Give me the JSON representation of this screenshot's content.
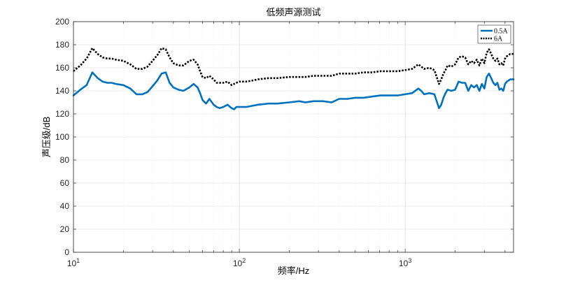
{
  "chart_data": {
    "type": "line",
    "title": "低频声源测试",
    "xlabel": "频率/Hz",
    "ylabel": "声压级/dB",
    "xscale": "log",
    "xlim": [
      10,
      4500
    ],
    "ylim": [
      0,
      200
    ],
    "yticks": [
      0,
      20,
      40,
      60,
      80,
      100,
      120,
      140,
      160,
      180,
      200
    ],
    "xticks": [
      {
        "value": 10,
        "base": "10",
        "exp": "1"
      },
      {
        "value": 100,
        "base": "10",
        "exp": "2"
      },
      {
        "value": 1000,
        "base": "10",
        "exp": "3"
      }
    ],
    "grid": true,
    "legend_position": "top-right",
    "series": [
      {
        "name": "0.5A",
        "color": "#0072BD",
        "style": "solid",
        "x": [
          10,
          11,
          12,
          13,
          14,
          15,
          16,
          17,
          18,
          20,
          22,
          24,
          26,
          28,
          30,
          32,
          34,
          36,
          38,
          40,
          43,
          46,
          50,
          53,
          56,
          58,
          60,
          63,
          66,
          70,
          73,
          76,
          80,
          85,
          88,
          90,
          93,
          96,
          100,
          110,
          120,
          130,
          150,
          170,
          200,
          230,
          250,
          280,
          320,
          360,
          400,
          450,
          500,
          560,
          630,
          710,
          800,
          900,
          1000,
          1100,
          1200,
          1250,
          1300,
          1400,
          1500,
          1600,
          1650,
          1700,
          1750,
          1800,
          1900,
          2000,
          2100,
          2200,
          2300,
          2400,
          2500,
          2600,
          2700,
          2800,
          2900,
          3000,
          3100,
          3200,
          3300,
          3400,
          3500,
          3600,
          3700,
          3800,
          3900,
          4000,
          4100,
          4200,
          4300,
          4400,
          4500
        ],
        "y": [
          136,
          141,
          145,
          156,
          151,
          148,
          147,
          147,
          146,
          145,
          142,
          137,
          137,
          139,
          144,
          149,
          155,
          156,
          147,
          143,
          141,
          140,
          143,
          146,
          143,
          138,
          132,
          129,
          133,
          128,
          126,
          125,
          126,
          128,
          126,
          125,
          124,
          126,
          126,
          126,
          127,
          128,
          129,
          129,
          130,
          131,
          130,
          131,
          131,
          130,
          133,
          133,
          134,
          134,
          135,
          136,
          136,
          136,
          137,
          138,
          142,
          140,
          137,
          138,
          137,
          125,
          128,
          134,
          138,
          141,
          140,
          141,
          148,
          147,
          147,
          140,
          145,
          143,
          145,
          140,
          146,
          142,
          152,
          155,
          151,
          147,
          145,
          147,
          141,
          142,
          140,
          146,
          148,
          149,
          150,
          150,
          150
        ]
      },
      {
        "name": "6A",
        "color": "#000000",
        "style": "dotted",
        "x": [
          10,
          11,
          12,
          13,
          14,
          15,
          16,
          17,
          18,
          20,
          22,
          24,
          26,
          28,
          30,
          32,
          34,
          36,
          38,
          40,
          43,
          46,
          50,
          53,
          56,
          58,
          60,
          63,
          66,
          70,
          73,
          76,
          80,
          85,
          88,
          90,
          93,
          96,
          100,
          110,
          120,
          130,
          150,
          170,
          200,
          230,
          250,
          280,
          320,
          360,
          400,
          450,
          500,
          560,
          630,
          710,
          800,
          900,
          1000,
          1100,
          1200,
          1250,
          1300,
          1400,
          1500,
          1600,
          1650,
          1700,
          1750,
          1800,
          1900,
          2000,
          2100,
          2200,
          2300,
          2400,
          2500,
          2600,
          2700,
          2800,
          2900,
          3000,
          3100,
          3200,
          3300,
          3400,
          3500,
          3600,
          3700,
          3800,
          3900,
          4000,
          4100,
          4200,
          4300,
          4400,
          4500
        ],
        "y": [
          157,
          162,
          168,
          177,
          172,
          169,
          168,
          168,
          167,
          166,
          163,
          159,
          159,
          161,
          166,
          171,
          177,
          176,
          169,
          164,
          162,
          162,
          166,
          167,
          163,
          157,
          152,
          151,
          153,
          150,
          147,
          147,
          147,
          148,
          146,
          145,
          146,
          147,
          148,
          148,
          149,
          150,
          151,
          151,
          152,
          152,
          152,
          153,
          153,
          153,
          155,
          155,
          155,
          156,
          156,
          157,
          157,
          157,
          158,
          159,
          163,
          161,
          159,
          160,
          158,
          146,
          150,
          155,
          158,
          162,
          161,
          163,
          169,
          170,
          169,
          163,
          166,
          164,
          167,
          162,
          168,
          164,
          173,
          176,
          172,
          168,
          166,
          168,
          163,
          164,
          162,
          168,
          170,
          171,
          172,
          172,
          172
        ]
      }
    ]
  }
}
